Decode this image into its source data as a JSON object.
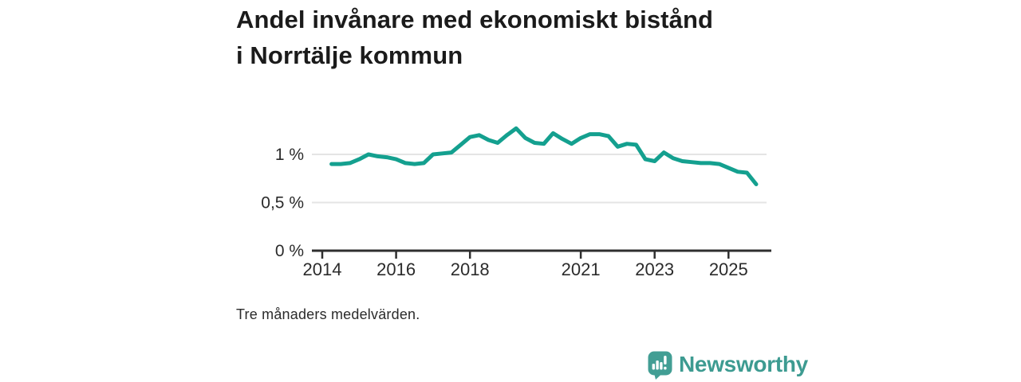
{
  "title": "Andel invånare med ekonomiskt bistånd i Norrtälje kommun",
  "footnote": "Tre månaders medelvärden.",
  "branding": {
    "logo_text": "Newsworthy",
    "logo_icon": "speech-bubble-bar-chart-icon",
    "wordmark_color": "#3d9b91",
    "icon_color": "#429e94",
    "icon_glyph_color": "#ffffff"
  },
  "colors": {
    "line": "#14a08f",
    "axis": "#2f2f2f",
    "grid": "#e4e4e4",
    "tick_label": "#2b2b2b",
    "title_text": "#1b1b1b"
  },
  "chart_data": {
    "type": "line",
    "title": "Andel invånare med ekonomiskt bistånd i Norrtälje kommun",
    "caption": "Tre månaders medelvärden.",
    "xlabel": "",
    "ylabel": "",
    "unit": "%",
    "grid": "horizontal",
    "legend_position": "none",
    "xlim": [
      2013.7,
      2026.2
    ],
    "ylim": [
      0,
      1.4
    ],
    "x_ticks": [
      {
        "value": 2014,
        "label": "2014"
      },
      {
        "value": 2016,
        "label": "2016"
      },
      {
        "value": 2018,
        "label": "2018"
      },
      {
        "value": 2021,
        "label": "2021"
      },
      {
        "value": 2023,
        "label": "2023"
      },
      {
        "value": 2025,
        "label": "2025"
      }
    ],
    "y_ticks": [
      {
        "value": 0,
        "label": "0 %"
      },
      {
        "value": 0.5,
        "label": "0,5 %"
      },
      {
        "value": 1,
        "label": "1 %"
      }
    ],
    "series": [
      {
        "name": "Andel invånare med ekonomiskt bistånd i Norrtälje kommun",
        "color": "#14a08f",
        "x_start": 2014.25,
        "x_step": 0.25,
        "values": [
          0.9,
          0.9,
          0.91,
          0.95,
          1.0,
          0.98,
          0.97,
          0.95,
          0.91,
          0.9,
          0.91,
          1.0,
          1.01,
          1.02,
          1.1,
          1.18,
          1.2,
          1.15,
          1.12,
          1.2,
          1.27,
          1.17,
          1.12,
          1.11,
          1.22,
          1.16,
          1.11,
          1.17,
          1.21,
          1.21,
          1.19,
          1.08,
          1.11,
          1.1,
          0.95,
          0.93,
          1.02,
          0.96,
          0.93,
          0.92,
          0.91,
          0.91,
          0.9,
          0.86,
          0.82,
          0.81,
          0.69
        ]
      }
    ]
  }
}
